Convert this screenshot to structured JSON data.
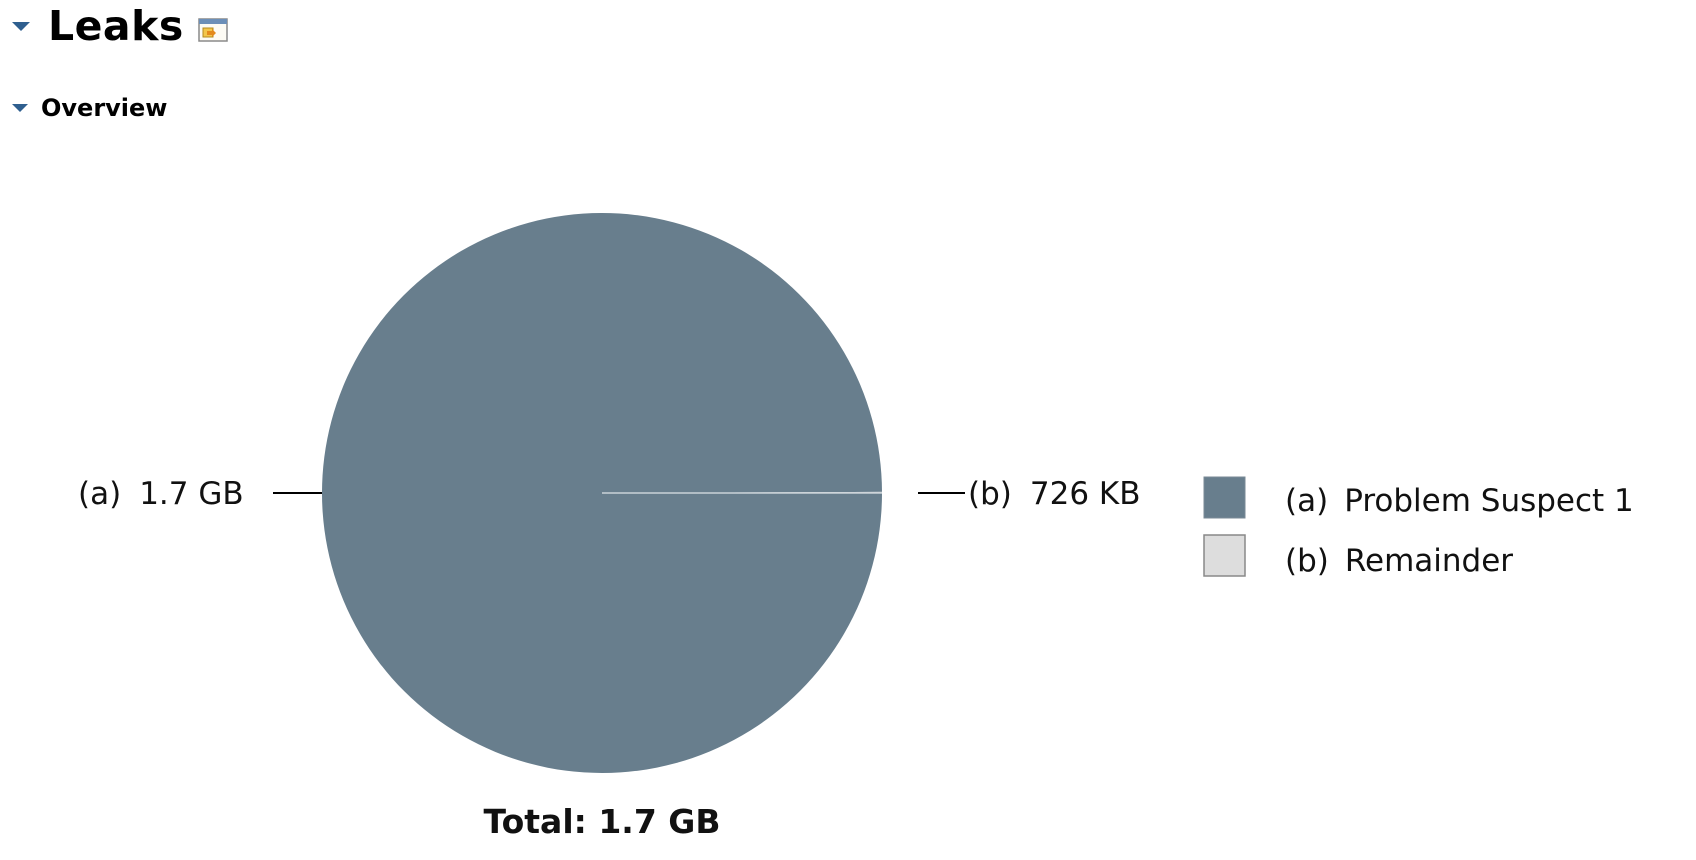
{
  "header": {
    "title": "Leaks",
    "detail_icon": "open-details-icon"
  },
  "overview": {
    "title": "Overview"
  },
  "chart_data": {
    "type": "pie",
    "slices": [
      {
        "id": "(a)",
        "label": "Problem Suspect 1",
        "value_text": "1.7 GB",
        "value_bytes": 1825361100,
        "color": "#687e8d"
      },
      {
        "id": "(b)",
        "label": "Remainder",
        "value_text": "726 KB",
        "value_bytes": 743424,
        "color": "#dddddd"
      }
    ],
    "total_text": "Total: 1.7 GB",
    "legend_position": "right"
  }
}
